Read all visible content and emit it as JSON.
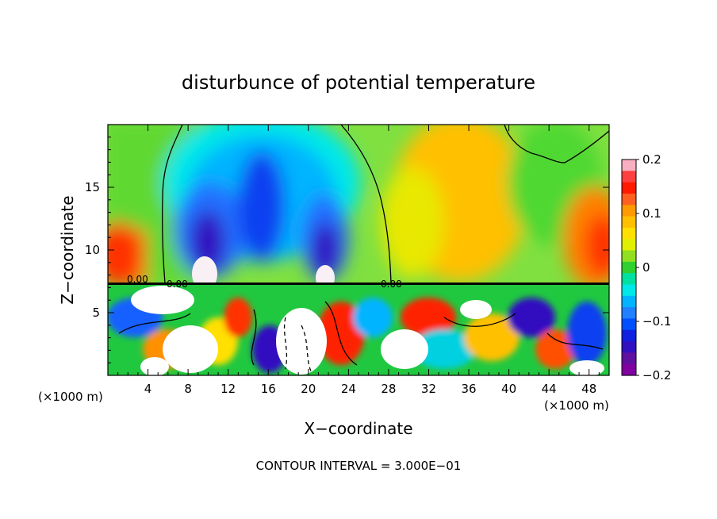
{
  "chart_data": {
    "type": "heatmap",
    "title": "disturbunce of potential temperature",
    "xlabel": "X−coordinate",
    "ylabel": "Z−coordinate",
    "x_unit": "(×1000 m)",
    "y_unit": "(×1000 m)",
    "xlim": [
      0,
      50
    ],
    "ylim": [
      0,
      20
    ],
    "x_ticks": [
      4,
      8,
      12,
      16,
      20,
      24,
      28,
      32,
      36,
      40,
      44,
      48
    ],
    "y_ticks": [
      5,
      10,
      15
    ],
    "contour_note": "CONTOUR INTERVAL = 3.000E−01",
    "colorbar": {
      "min": -0.2,
      "max": 0.2,
      "tick_values": [
        0.2,
        0.1,
        0,
        -0.1,
        -0.2
      ],
      "tick_labels": [
        "0.2",
        "0.1",
        "0",
        "−0.1",
        "−0.2"
      ],
      "colors": [
        "#f8b0c0",
        "#ff4040",
        "#ff1a00",
        "#ff6020",
        "#ff9a00",
        "#ffc000",
        "#ffe000",
        "#e0f000",
        "#90e020",
        "#30d030",
        "#00e0a0",
        "#00e8e8",
        "#00b4ff",
        "#2080ff",
        "#0050ff",
        "#1020e0",
        "#3010c0",
        "#6010a0",
        "#8000a0"
      ]
    },
    "grid": false
  }
}
